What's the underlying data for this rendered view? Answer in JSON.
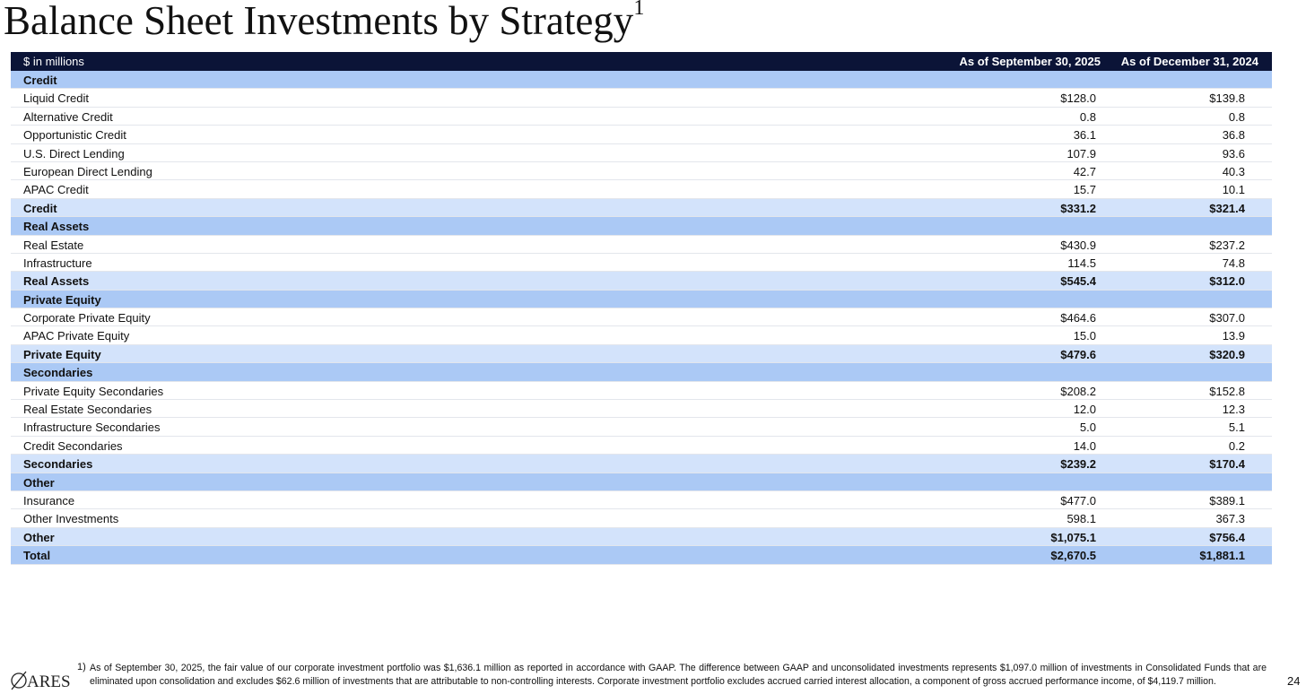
{
  "header": {
    "title": "Balance Sheet Investments by Strategy",
    "title_note": "1"
  },
  "table": {
    "columns": [
      "$ in millions",
      "As of September 30, 2025",
      "As of December 31, 2024"
    ],
    "sections": [
      {
        "header": "Credit",
        "rows": [
          [
            "Liquid Credit",
            "$128.0",
            "$139.8"
          ],
          [
            "Alternative Credit",
            "0.8",
            "0.8"
          ],
          [
            "Opportunistic Credit",
            "36.1",
            "36.8"
          ],
          [
            "U.S. Direct Lending",
            "107.9",
            "93.6"
          ],
          [
            "European Direct Lending",
            "42.7",
            "40.3"
          ],
          [
            "APAC Credit",
            "15.7",
            "10.1"
          ]
        ],
        "subtotal": [
          "Credit",
          "$331.2",
          "$321.4"
        ]
      },
      {
        "header": "Real Assets",
        "rows": [
          [
            "Real Estate",
            "$430.9",
            "$237.2"
          ],
          [
            "Infrastructure",
            "114.5",
            "74.8"
          ]
        ],
        "subtotal": [
          "Real Assets",
          "$545.4",
          "$312.0"
        ]
      },
      {
        "header": "Private Equity",
        "rows": [
          [
            "Corporate Private Equity",
            "$464.6",
            "$307.0"
          ],
          [
            "APAC Private Equity",
            "15.0",
            "13.9"
          ]
        ],
        "subtotal": [
          "Private Equity",
          "$479.6",
          "$320.9"
        ]
      },
      {
        "header": "Secondaries",
        "rows": [
          [
            "Private Equity Secondaries",
            "$208.2",
            "$152.8"
          ],
          [
            "Real Estate Secondaries",
            "12.0",
            "12.3"
          ],
          [
            "Infrastructure Secondaries",
            "5.0",
            "5.1"
          ],
          [
            "Credit Secondaries",
            "14.0",
            "0.2"
          ]
        ],
        "subtotal": [
          "Secondaries",
          "$239.2",
          "$170.4"
        ]
      },
      {
        "header": "Other",
        "rows": [
          [
            "Insurance",
            "$477.0",
            "$389.1"
          ],
          [
            "Other Investments",
            "598.1",
            "367.3"
          ]
        ],
        "subtotal": [
          "Other",
          "$1,075.1",
          "$756.4"
        ]
      }
    ],
    "total": [
      "Total",
      "$2,670.5",
      "$1,881.1"
    ]
  },
  "footnote": {
    "marker": "1)",
    "text": "As of September 30, 2025, the fair value of our corporate investment portfolio was $1,636.1 million as reported in accordance with GAAP. The difference between GAAP and unconsolidated investments represents $1,097.0 million of investments in Consolidated Funds that are eliminated upon consolidation and excludes $62.6 million of investments that are attributable to non-controlling interests. Corporate investment portfolio excludes accrued carried interest allocation, a component of gross accrued performance income, of $4,119.7 million."
  },
  "logo": "ARES",
  "page_number": "24"
}
